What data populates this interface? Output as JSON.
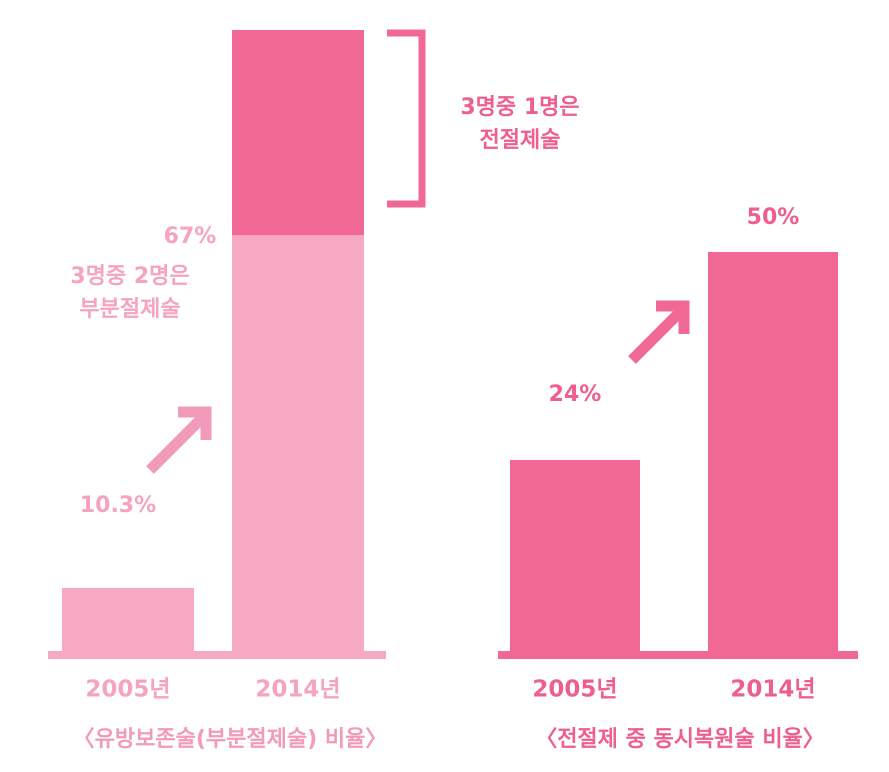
{
  "chart_data": [
    {
      "type": "bar",
      "stacked": true,
      "title": "〈유방보존술(부분절제술) 비율〉",
      "categories": [
        "2005년",
        "2014년"
      ],
      "series": [
        {
          "color": "#f7a9c4",
          "values": [
            10.3,
            67
          ],
          "value_labels": [
            "10.3%",
            "67%"
          ]
        },
        {
          "color": "#f06893",
          "values": [
            null,
            33
          ]
        }
      ],
      "ylim": [
        0,
        100
      ],
      "annotations": [
        [
          "3명중 1명은",
          "전절제술"
        ],
        [
          "3명중 2명은",
          "부분절제술"
        ]
      ]
    },
    {
      "type": "bar",
      "title": "〈전절제 중 동시복원술 비율〉",
      "categories": [
        "2005년",
        "2014년"
      ],
      "color": "#f06893",
      "values": [
        24,
        50
      ],
      "value_labels": [
        "24%",
        "50%"
      ],
      "ylim": [
        0,
        55
      ]
    }
  ]
}
